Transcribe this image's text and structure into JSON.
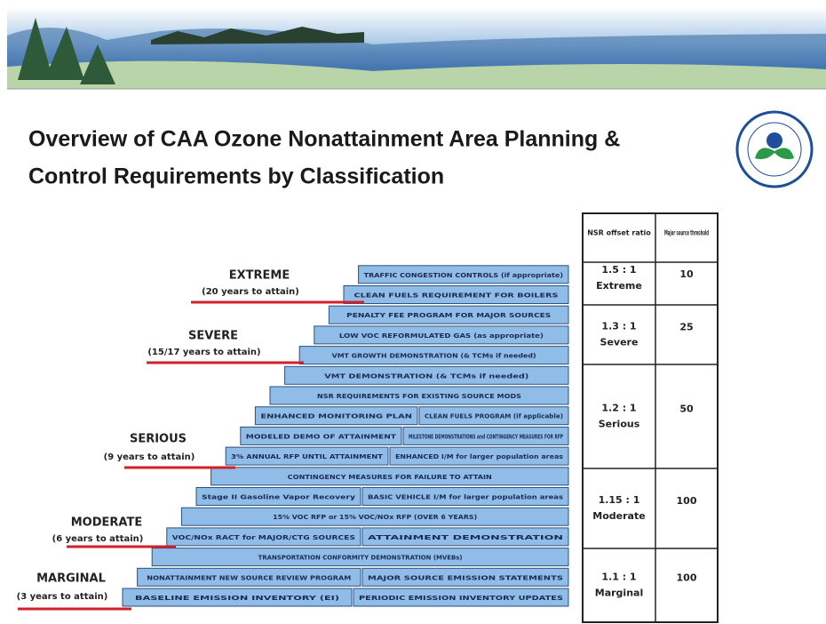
{
  "header": {
    "title_line1": "Overview of CAA Ozone Nonattainment Area Planning &",
    "title_line2": "Control Requirements by Classification"
  },
  "classifications": [
    {
      "name": "EXTREME",
      "years": "(20 years to attain)"
    },
    {
      "name": "SEVERE",
      "years": "(15/17 years to attain)"
    },
    {
      "name": "SERIOUS",
      "years": "(9 years to attain)"
    },
    {
      "name": "MODERATE",
      "years": "(6 years to attain)"
    },
    {
      "name": "MARGINAL",
      "years": "(3 years to attain)"
    }
  ],
  "stairs": [
    [
      "TRAFFIC CONGESTION CONTROLS (if appropriate)"
    ],
    [
      "CLEAN FUELS REQUIREMENT FOR BOILERS"
    ],
    [
      "PENALTY FEE PROGRAM FOR MAJOR SOURCES"
    ],
    [
      "LOW VOC REFORMULATED GAS (as appropriate)"
    ],
    [
      "VMT GROWTH DEMONSTRATION (& TCMs if needed)"
    ],
    [
      "VMT DEMONSTRATION (& TCMs if needed)"
    ],
    [
      "NSR REQUIREMENTS FOR EXISTING SOURCE MODS"
    ],
    [
      "ENHANCED MONITORING PLAN",
      "CLEAN FUELS PROGRAM (if applicable)"
    ],
    [
      "MODELED DEMO OF ATTAINMENT",
      "MILESTONE DEMONSTRATIONS and CONTINGENCY MEASURES FOR RFP"
    ],
    [
      "3% ANNUAL RFP UNTIL ATTAINMENT",
      "ENHANCED I/M for larger population areas"
    ],
    [
      "CONTINGENCY MEASURES FOR FAILURE TO ATTAIN"
    ],
    [
      "Stage II Gasoline Vapor Recovery",
      "BASIC VEHICLE I/M for larger population areas"
    ],
    [
      "15% VOC RFP or 15% VOC/NOx RFP (OVER 6 YEARS)"
    ],
    [
      "VOC/NOx RACT for MAJOR/CTG SOURCES",
      "ATTAINMENT DEMONSTRATION"
    ],
    [
      "TRANSPORTATION CONFORMITY DEMONSTRATION (MVEBs)"
    ],
    [
      "NONATTAINMENT NEW SOURCE REVIEW PROGRAM",
      "MAJOR SOURCE EMISSION STATEMENTS"
    ],
    [
      "BASELINE EMISSION INVENTORY (EI)",
      "PERIODIC EMISSION INVENTORY UPDATES"
    ]
  ],
  "table": {
    "headers": [
      "NSR offset ratio",
      "Major source threshold"
    ],
    "rows": [
      {
        "ratio": "1.5 : 1",
        "class": "Extreme",
        "threshold": "10"
      },
      {
        "ratio": "1.3 : 1",
        "class": "Severe",
        "threshold": "25"
      },
      {
        "ratio": "1.2 : 1",
        "class": "Serious",
        "threshold": "50"
      },
      {
        "ratio": "1.15 : 1",
        "class": "Moderate",
        "threshold": "100"
      },
      {
        "ratio": "1.1 : 1",
        "class": "Marginal",
        "threshold": "100"
      }
    ]
  }
}
